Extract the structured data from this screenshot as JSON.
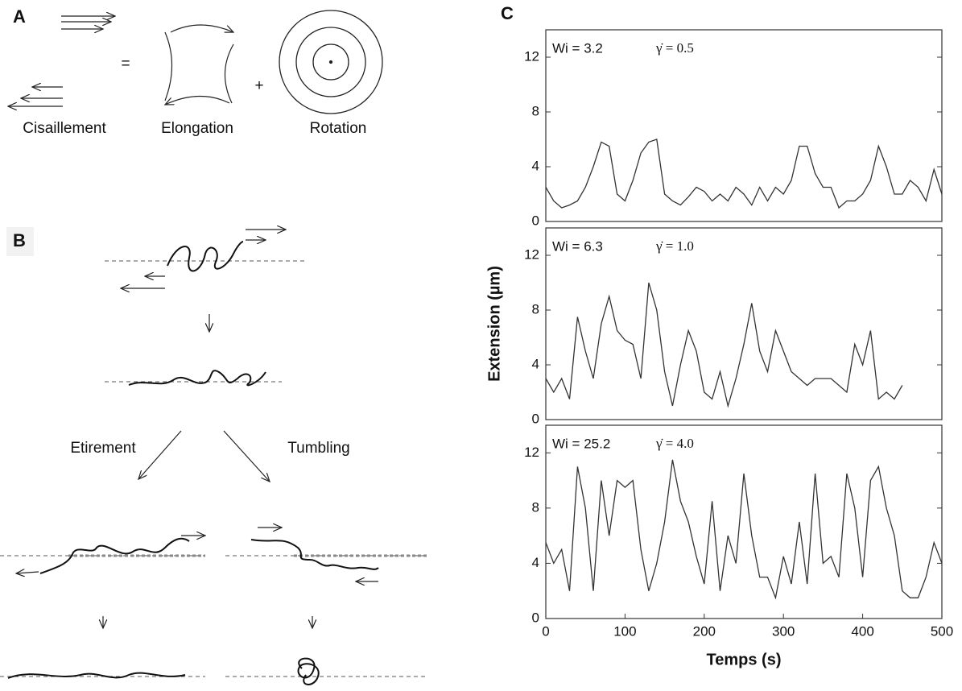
{
  "figure": {
    "panel_a": {
      "label": "A",
      "equals": "=",
      "plus": "+",
      "labels": [
        "Cisaillement",
        "Elongation",
        "Rotation"
      ]
    },
    "panel_b": {
      "label": "B",
      "labels": [
        "Etirement",
        "Tumbling"
      ]
    },
    "panel_c": {
      "label": "C"
    }
  },
  "chart_data": [
    {
      "type": "line",
      "annotations": [
        "Wi = 3.2",
        "γ̇ = 0.5"
      ],
      "color": "#333333",
      "grid": false,
      "xlim": [
        0,
        500
      ],
      "ylim": [
        0,
        14
      ],
      "yticks": [
        0,
        4,
        8,
        12
      ],
      "x": [
        0,
        10,
        20,
        30,
        40,
        50,
        60,
        70,
        80,
        90,
        100,
        110,
        120,
        130,
        140,
        150,
        160,
        170,
        180,
        190,
        200,
        210,
        220,
        230,
        240,
        250,
        260,
        270,
        280,
        290,
        300,
        310,
        320,
        330,
        340,
        350,
        360,
        370,
        380,
        390,
        400,
        410,
        420,
        430,
        440,
        450,
        460,
        470,
        480,
        490,
        500
      ],
      "values": [
        2.5,
        1.5,
        1.0,
        1.2,
        1.5,
        2.5,
        4,
        5.8,
        5.5,
        2,
        1.5,
        3,
        5,
        5.8,
        6,
        2,
        1.5,
        1.2,
        1.8,
        2.5,
        2.2,
        1.5,
        2,
        1.5,
        2.5,
        2,
        1.2,
        2.5,
        1.5,
        2.5,
        2,
        3,
        5.5,
        5.5,
        3.5,
        2.5,
        2.5,
        1,
        1.5,
        1.5,
        2,
        3,
        5.5,
        4,
        2,
        2,
        3,
        2.5,
        1.5,
        3.8,
        2
      ]
    },
    {
      "type": "line",
      "annotations": [
        "Wi = 6.3",
        "γ̇ = 1.0"
      ],
      "color": "#333333",
      "grid": false,
      "ylabel": "Extension (µm)",
      "xlim": [
        0,
        500
      ],
      "ylim": [
        0,
        14
      ],
      "yticks": [
        0,
        4,
        8,
        12
      ],
      "x": [
        0,
        10,
        20,
        30,
        40,
        50,
        60,
        70,
        80,
        90,
        100,
        110,
        120,
        130,
        140,
        150,
        160,
        170,
        180,
        190,
        200,
        210,
        220,
        230,
        240,
        250,
        260,
        270,
        280,
        290,
        300,
        310,
        320,
        330,
        340,
        350,
        360,
        370,
        380,
        390,
        400,
        410,
        420,
        430,
        440,
        450
      ],
      "values": [
        3,
        2,
        3,
        1.5,
        7.5,
        5,
        3,
        7,
        9,
        6.5,
        5.8,
        5.5,
        3,
        10,
        8,
        3.5,
        1,
        4,
        6.5,
        5,
        2,
        1.5,
        3.5,
        1,
        3,
        5.5,
        8.5,
        5,
        3.5,
        6.5,
        5,
        3.5,
        3,
        2.5,
        3,
        3,
        3,
        2.5,
        2,
        5.5,
        4,
        6.5,
        1.5,
        2,
        1.5,
        2.5
      ]
    },
    {
      "type": "line",
      "annotations": [
        "Wi = 25.2",
        "γ̇ = 4.0"
      ],
      "color": "#333333",
      "grid": false,
      "xlabel": "Temps (s)",
      "xlim": [
        0,
        500
      ],
      "xticks": [
        0,
        100,
        200,
        300,
        400,
        500
      ],
      "ylim": [
        0,
        14
      ],
      "yticks": [
        0,
        4,
        8,
        12
      ],
      "x": [
        0,
        10,
        20,
        30,
        40,
        50,
        60,
        70,
        80,
        90,
        100,
        110,
        120,
        130,
        140,
        150,
        160,
        170,
        180,
        190,
        200,
        210,
        220,
        230,
        240,
        250,
        260,
        270,
        280,
        290,
        300,
        310,
        320,
        330,
        340,
        350,
        360,
        370,
        380,
        390,
        400,
        410,
        420,
        430,
        440,
        450,
        460,
        470,
        480,
        490,
        500
      ],
      "values": [
        5.5,
        4,
        5,
        2,
        11,
        8,
        2,
        10,
        6,
        10,
        9.5,
        10,
        5,
        2,
        4,
        7,
        11.5,
        8.5,
        7,
        4.5,
        2.5,
        8.5,
        2,
        6,
        4,
        10.5,
        6,
        3,
        3,
        1.5,
        4.5,
        2.5,
        7,
        2.5,
        10.5,
        4,
        4.5,
        3,
        10.5,
        8,
        3,
        10,
        11,
        8,
        6,
        2,
        1.5,
        1.5,
        3,
        5.5,
        4
      ]
    }
  ]
}
